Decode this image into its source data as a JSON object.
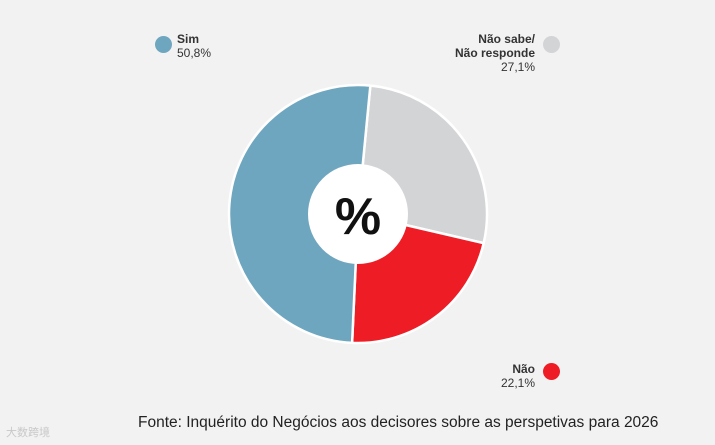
{
  "chart_data": {
    "type": "pie",
    "center_label": "%",
    "slices": [
      {
        "key": "sim",
        "name": "Sim",
        "value": 50.8,
        "label": "50,8%",
        "color": "#6ea6bf"
      },
      {
        "key": "ns",
        "name": "Não sabe/",
        "name2": "Não responde",
        "value": 27.1,
        "label": "27,1%",
        "color": "#d3d4d6"
      },
      {
        "key": "nao",
        "name": "Não",
        "value": 22.1,
        "label": "22,1%",
        "color": "#ee1c25"
      }
    ],
    "source": "Fonte: Inquérito do Negócios aos decisores sobre as perspetivas para 2026"
  },
  "watermark": "大数跨境"
}
